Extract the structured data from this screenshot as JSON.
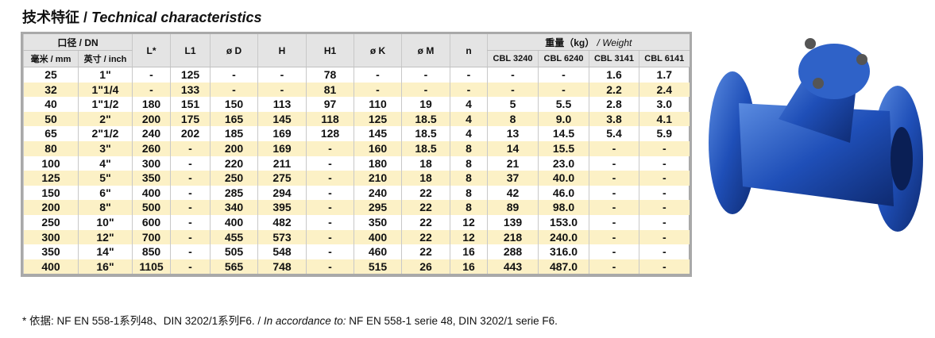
{
  "header": {
    "title_zh": "技术特征",
    "title_sep": "/",
    "title_en": "Technical characteristics"
  },
  "table": {
    "group_dn": "口径 / DN",
    "group_weight_zh": "重量（kg）",
    "group_weight_en": "/ Weight",
    "single_columns": [
      "L*",
      "L1",
      "ø D",
      "H",
      "H1",
      "ø K",
      "ø M",
      "n"
    ],
    "dn_columns": [
      "毫米 / mm",
      "英寸 / inch"
    ],
    "weight_columns": [
      "CBL 3240",
      "CBL 6240",
      "CBL 3141",
      "CBL 6141"
    ],
    "rows": [
      [
        "25",
        "1\"",
        "-",
        "125",
        "-",
        "-",
        "78",
        "-",
        "-",
        "-",
        "-",
        "-",
        "1.6",
        "1.7"
      ],
      [
        "32",
        "1\"1/4",
        "-",
        "133",
        "-",
        "-",
        "81",
        "-",
        "-",
        "-",
        "-",
        "-",
        "2.2",
        "2.4"
      ],
      [
        "40",
        "1\"1/2",
        "180",
        "151",
        "150",
        "113",
        "97",
        "110",
        "19",
        "4",
        "5",
        "5.5",
        "2.8",
        "3.0"
      ],
      [
        "50",
        "2\"",
        "200",
        "175",
        "165",
        "145",
        "118",
        "125",
        "18.5",
        "4",
        "8",
        "9.0",
        "3.8",
        "4.1"
      ],
      [
        "65",
        "2\"1/2",
        "240",
        "202",
        "185",
        "169",
        "128",
        "145",
        "18.5",
        "4",
        "13",
        "14.5",
        "5.4",
        "5.9"
      ],
      [
        "80",
        "3\"",
        "260",
        "-",
        "200",
        "169",
        "-",
        "160",
        "18.5",
        "8",
        "14",
        "15.5",
        "-",
        "-"
      ],
      [
        "100",
        "4\"",
        "300",
        "-",
        "220",
        "211",
        "-",
        "180",
        "18",
        "8",
        "21",
        "23.0",
        "-",
        "-"
      ],
      [
        "125",
        "5\"",
        "350",
        "-",
        "250",
        "275",
        "-",
        "210",
        "18",
        "8",
        "37",
        "40.0",
        "-",
        "-"
      ],
      [
        "150",
        "6\"",
        "400",
        "-",
        "285",
        "294",
        "-",
        "240",
        "22",
        "8",
        "42",
        "46.0",
        "-",
        "-"
      ],
      [
        "200",
        "8\"",
        "500",
        "-",
        "340",
        "395",
        "-",
        "295",
        "22",
        "8",
        "89",
        "98.0",
        "-",
        "-"
      ],
      [
        "250",
        "10\"",
        "600",
        "-",
        "400",
        "482",
        "-",
        "350",
        "22",
        "12",
        "139",
        "153.0",
        "-",
        "-"
      ],
      [
        "300",
        "12\"",
        "700",
        "-",
        "455",
        "573",
        "-",
        "400",
        "22",
        "12",
        "218",
        "240.0",
        "-",
        "-"
      ],
      [
        "350",
        "14\"",
        "850",
        "-",
        "505",
        "548",
        "-",
        "460",
        "22",
        "16",
        "288",
        "316.0",
        "-",
        "-"
      ],
      [
        "400",
        "16\"",
        "1105",
        "-",
        "565",
        "748",
        "-",
        "515",
        "26",
        "16",
        "443",
        "487.0",
        "-",
        "-"
      ]
    ]
  },
  "footnote": {
    "zh": "* 依据:  NF EN 558-1系列48、DIN 3202/1系列F6.",
    "sep": "/",
    "en": "In accordance to:",
    "rest": "NF EN 558-1 serie 48, DIN 3202/1 serie F6."
  }
}
